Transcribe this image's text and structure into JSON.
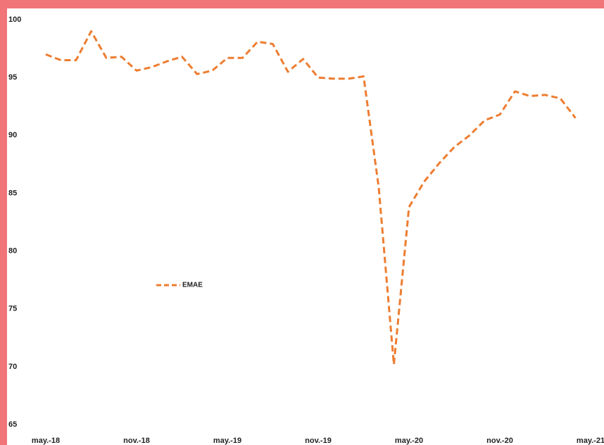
{
  "chart_data": {
    "type": "line",
    "categories": [
      "may.-18",
      null,
      null,
      null,
      null,
      null,
      "nov.-18",
      null,
      null,
      null,
      null,
      null,
      "may.-19",
      null,
      null,
      null,
      null,
      null,
      "nov.-19",
      null,
      null,
      null,
      null,
      null,
      "may.-20",
      null,
      null,
      null,
      null,
      null,
      "nov.-20",
      null,
      null,
      null,
      null,
      null,
      "may.-21"
    ],
    "series": [
      {
        "name": "EMAE",
        "color": "#ed7d31",
        "values": [
          97.0,
          96.5,
          96.5,
          99.0,
          96.7,
          96.8,
          95.6,
          95.9,
          96.4,
          96.8,
          95.3,
          95.6,
          96.7,
          96.7,
          98.1,
          97.9,
          95.5,
          96.6,
          95.0,
          94.9,
          94.9,
          95.1,
          85.5,
          70.2,
          83.8,
          86.0,
          87.6,
          89.0,
          90.0,
          91.3,
          91.8,
          93.8,
          93.4,
          93.5,
          93.2,
          91.5,
          null
        ]
      }
    ],
    "ylim": [
      65,
      100
    ],
    "yticks": [
      65,
      70,
      75,
      80,
      85,
      90,
      95,
      100
    ],
    "legend": "left",
    "dashed": true
  }
}
